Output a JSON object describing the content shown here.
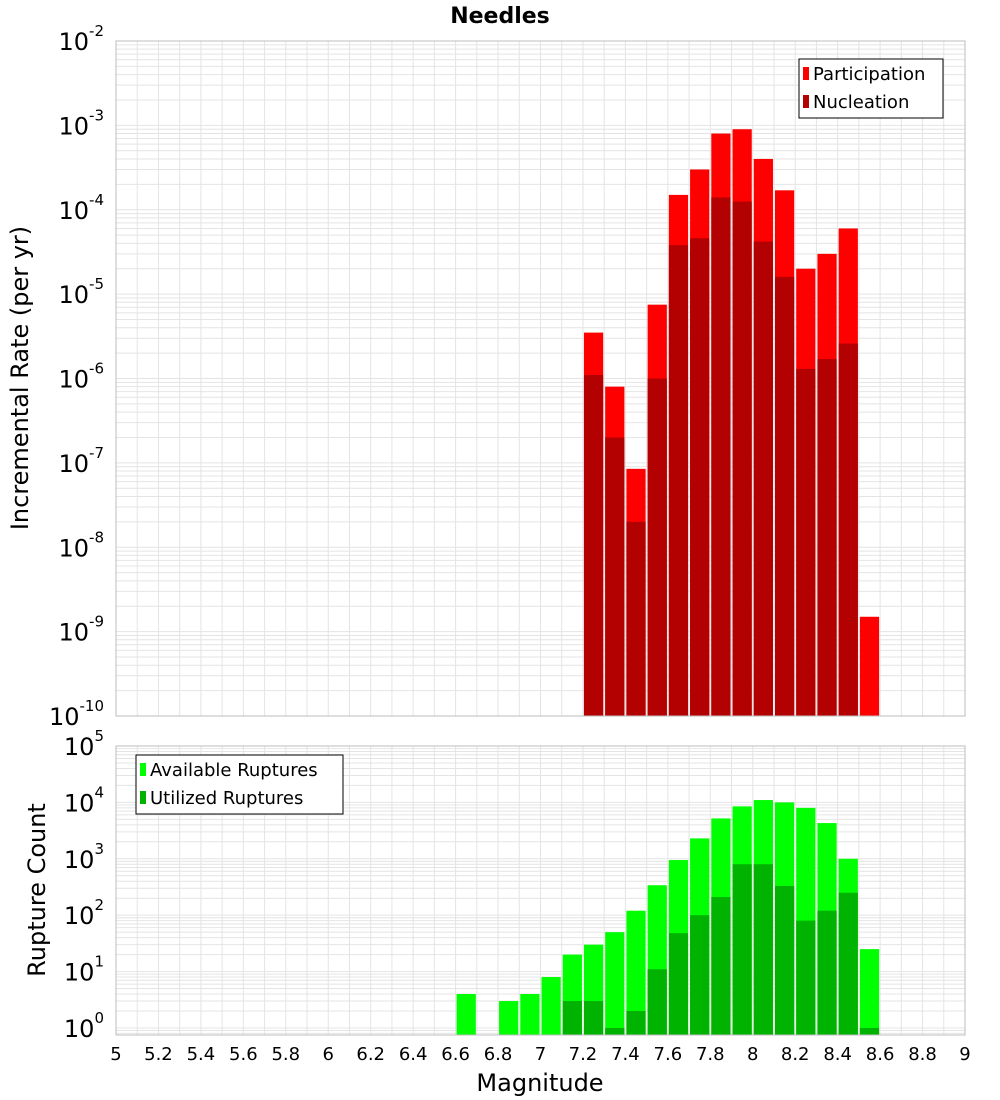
{
  "colors": {
    "participation": "#ff0000",
    "nucleation": "#b30000",
    "available": "#00ff00",
    "utilized": "#00b300",
    "grid": "#e4e4e4",
    "frame": "#bdbdbd"
  },
  "chart_data": [
    {
      "type": "bar",
      "title": "Needles",
      "xlabel": "",
      "ylabel": "Incremental Rate (per yr)",
      "yscale": "log",
      "ylim": [
        1e-10,
        0.01
      ],
      "ytick_labels": [
        {
          "base": "10",
          "exp": "-10"
        },
        {
          "base": "10",
          "exp": "-9"
        },
        {
          "base": "10",
          "exp": "-8"
        },
        {
          "base": "10",
          "exp": "-7"
        },
        {
          "base": "10",
          "exp": "-6"
        },
        {
          "base": "10",
          "exp": "-5"
        },
        {
          "base": "10",
          "exp": "-4"
        },
        {
          "base": "10",
          "exp": "-3"
        },
        {
          "base": "10",
          "exp": "-2"
        }
      ],
      "xlim": [
        5,
        9
      ],
      "grid": true,
      "legend": {
        "position": "top-right",
        "entries": [
          "Participation",
          "Nucleation"
        ]
      },
      "series": [
        {
          "name": "Participation",
          "x": [
            7.25,
            7.35,
            7.45,
            7.55,
            7.65,
            7.75,
            7.85,
            7.95,
            8.05,
            8.15,
            8.25,
            8.35,
            8.45,
            8.55
          ],
          "values": [
            3.5e-06,
            8e-07,
            8.5e-08,
            7.5e-06,
            0.00015,
            0.0003,
            0.0008,
            0.0009,
            0.0004,
            0.00017,
            2e-05,
            3e-05,
            6e-05,
            1.5e-09
          ]
        },
        {
          "name": "Nucleation",
          "x": [
            7.25,
            7.35,
            7.45,
            7.55,
            7.65,
            7.75,
            7.85,
            7.95,
            8.05,
            8.15,
            8.25,
            8.35,
            8.45
          ],
          "values": [
            1.1e-06,
            2e-07,
            2e-08,
            1e-06,
            3.8e-05,
            4.6e-05,
            0.00014,
            0.000125,
            4.2e-05,
            1.6e-05,
            1.3e-06,
            1.7e-06,
            2.6e-06
          ]
        }
      ]
    },
    {
      "type": "bar",
      "title": "",
      "xlabel": "Magnitude",
      "ylabel": "Rupture Count",
      "yscale": "log",
      "ylim": [
        0.75,
        100000
      ],
      "ytick_values": [
        1,
        10,
        100,
        1000,
        10000,
        100000
      ],
      "ytick_labels": [
        {
          "base": "10",
          "exp": "0"
        },
        {
          "base": "10",
          "exp": "1"
        },
        {
          "base": "10",
          "exp": "2"
        },
        {
          "base": "10",
          "exp": "3"
        },
        {
          "base": "10",
          "exp": "4"
        },
        {
          "base": "10",
          "exp": "5"
        }
      ],
      "xlim": [
        5,
        9
      ],
      "xtick_labels": [
        "5",
        "5.2",
        "5.4",
        "5.6",
        "5.8",
        "6",
        "6.2",
        "6.4",
        "6.6",
        "6.8",
        "7",
        "7.2",
        "7.4",
        "7.6",
        "7.8",
        "8",
        "8.2",
        "8.4",
        "8.6",
        "8.8",
        "9"
      ],
      "grid": true,
      "legend": {
        "position": "top-left",
        "entries": [
          "Available Ruptures",
          "Utilized Ruptures"
        ]
      },
      "series": [
        {
          "name": "Available Ruptures",
          "x": [
            6.65,
            6.85,
            6.95,
            7.05,
            7.15,
            7.25,
            7.35,
            7.45,
            7.55,
            7.65,
            7.75,
            7.85,
            7.95,
            8.05,
            8.15,
            8.25,
            8.35,
            8.45,
            8.55
          ],
          "values": [
            4,
            3,
            4,
            8,
            20,
            30,
            50,
            120,
            340,
            950,
            2300,
            5200,
            8500,
            11000,
            10000,
            8000,
            4300,
            1000,
            25
          ]
        },
        {
          "name": "Utilized Ruptures",
          "x": [
            7.15,
            7.25,
            7.35,
            7.45,
            7.55,
            7.65,
            7.75,
            7.85,
            7.95,
            8.05,
            8.15,
            8.25,
            8.35,
            8.45,
            8.55
          ],
          "values": [
            3,
            3,
            1,
            2,
            11,
            48,
            100,
            210,
            800,
            800,
            330,
            80,
            120,
            250,
            1
          ]
        }
      ]
    }
  ]
}
